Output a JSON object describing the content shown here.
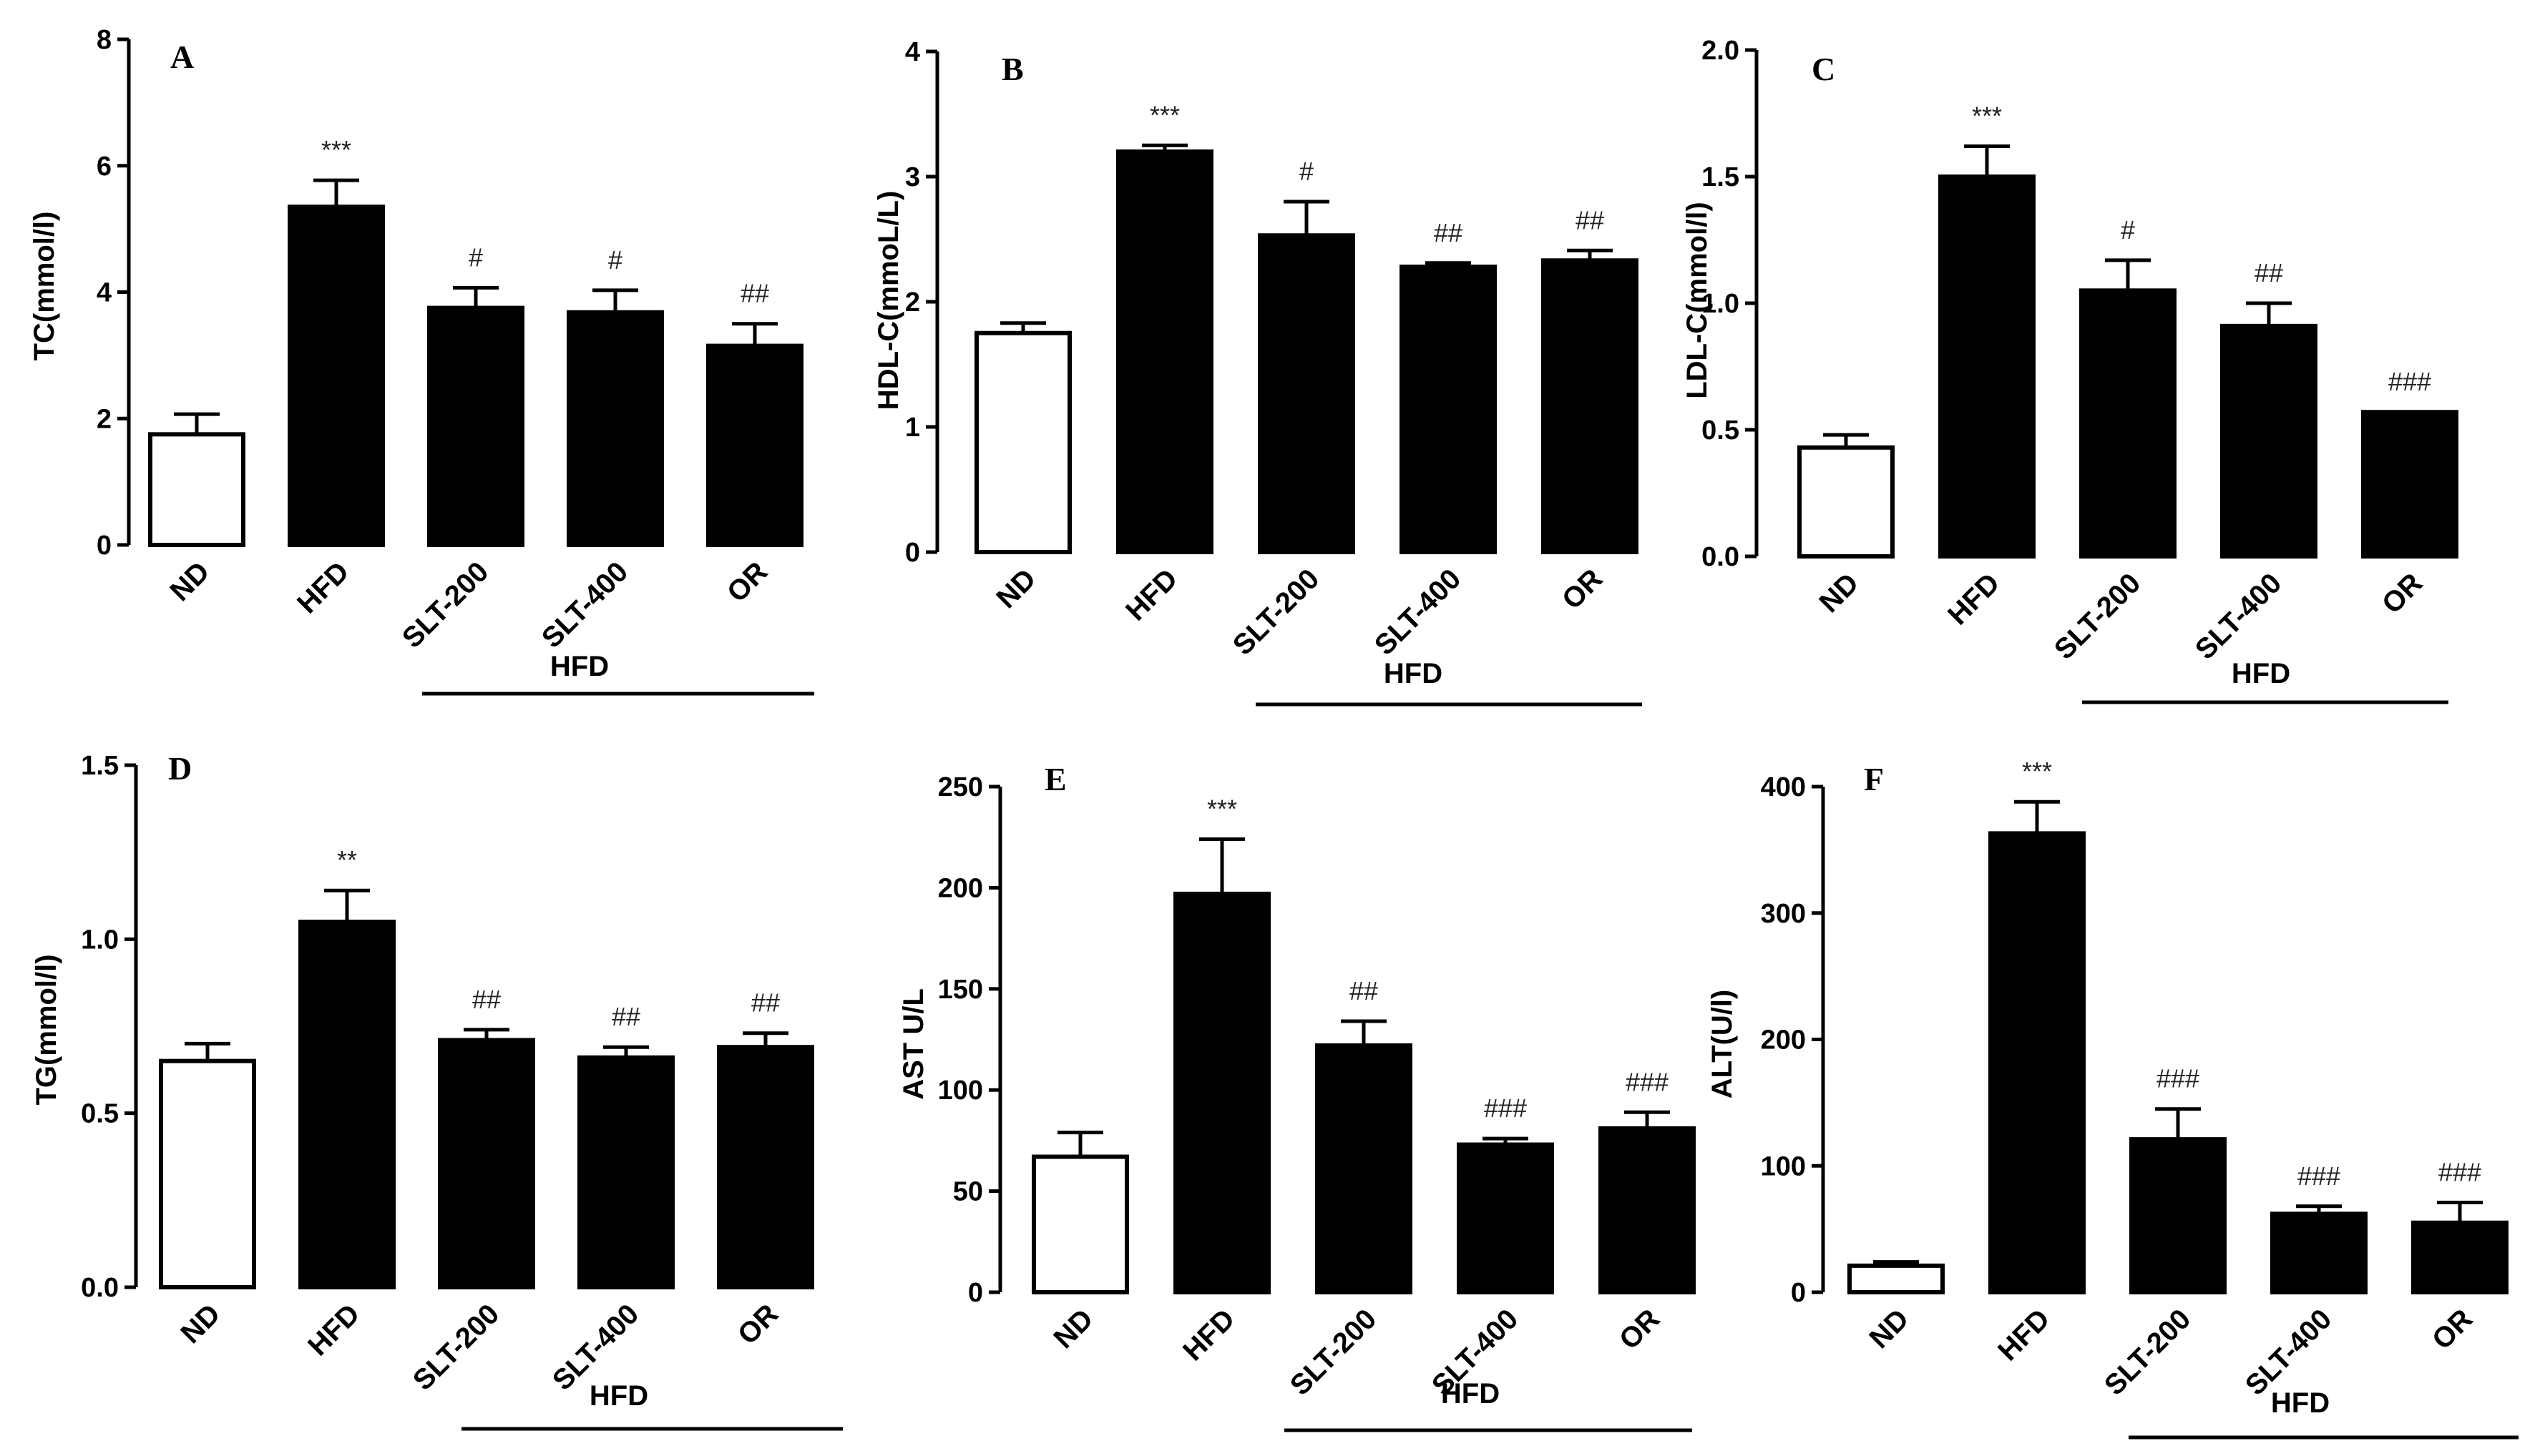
{
  "chart_data": [
    {
      "type": "bar",
      "panel": "A",
      "ylabel": "TC(mmol/l)",
      "ylim": [
        0,
        8
      ],
      "yticks": [
        0,
        2,
        4,
        6,
        8
      ],
      "ytick_labels": [
        "0",
        "2",
        "4",
        "6",
        "8"
      ],
      "categories": [
        "ND",
        "HFD",
        "SLT-200",
        "SLT-400",
        "OR"
      ],
      "values": [
        1.75,
        5.35,
        3.75,
        3.68,
        3.15
      ],
      "errors": [
        0.32,
        0.42,
        0.32,
        0.35,
        0.35
      ],
      "fills": [
        "#ffffff",
        "#000000",
        "#000000",
        "#000000",
        "#000000"
      ],
      "significance": [
        "",
        "***",
        "#",
        "#",
        "##"
      ],
      "group_label": "HFD"
    },
    {
      "type": "bar",
      "panel": "B",
      "ylabel": "HDL-C(mmoL/L)",
      "ylim": [
        0,
        4
      ],
      "yticks": [
        0,
        1,
        2,
        3,
        4
      ],
      "ytick_labels": [
        "0",
        "1",
        "2",
        "3",
        "4"
      ],
      "categories": [
        "ND",
        "HFD",
        "SLT-200",
        "SLT-400",
        "OR"
      ],
      "values": [
        1.75,
        3.2,
        2.53,
        2.28,
        2.33
      ],
      "errors": [
        0.08,
        0.05,
        0.27,
        0.03,
        0.08
      ],
      "fills": [
        "#ffffff",
        "#000000",
        "#000000",
        "#000000",
        "#000000"
      ],
      "significance": [
        "",
        "***",
        "#",
        "##",
        "##"
      ],
      "group_label": "HFD"
    },
    {
      "type": "bar",
      "panel": "C",
      "ylabel": "LDL-C(mmol/l)",
      "ylim": [
        0,
        2.0
      ],
      "yticks": [
        0,
        0.5,
        1.0,
        1.5,
        2.0
      ],
      "ytick_labels": [
        "0.0",
        "0.5",
        "1.0",
        "1.5",
        "2.0"
      ],
      "categories": [
        "ND",
        "HFD",
        "SLT-200",
        "SLT-400",
        "OR"
      ],
      "values": [
        0.43,
        1.5,
        1.05,
        0.91,
        0.57
      ],
      "errors": [
        0.05,
        0.12,
        0.12,
        0.09,
        0.0
      ],
      "fills": [
        "#ffffff",
        "#000000",
        "#000000",
        "#000000",
        "#000000"
      ],
      "significance": [
        "",
        "***",
        "#",
        "##",
        "###"
      ],
      "group_label": "HFD"
    },
    {
      "type": "bar",
      "panel": "D",
      "ylabel": "TG(mmol/l)",
      "ylim": [
        0,
        1.5
      ],
      "yticks": [
        0,
        0.5,
        1.0,
        1.5
      ],
      "ytick_labels": [
        "0.0",
        "0.5",
        "1.0",
        "1.5"
      ],
      "categories": [
        "ND",
        "HFD",
        "SLT-200",
        "SLT-400",
        "OR"
      ],
      "values": [
        0.65,
        1.05,
        0.71,
        0.66,
        0.69
      ],
      "errors": [
        0.05,
        0.09,
        0.03,
        0.03,
        0.04
      ],
      "fills": [
        "#ffffff",
        "#000000",
        "#000000",
        "#000000",
        "#000000"
      ],
      "significance": [
        "",
        "**",
        "##",
        "##",
        "##"
      ],
      "group_label": "HFD"
    },
    {
      "type": "bar",
      "panel": "E",
      "ylabel": "AST U/L",
      "ylim": [
        0,
        250
      ],
      "yticks": [
        0,
        50,
        100,
        150,
        200,
        250
      ],
      "ytick_labels": [
        "0",
        "50",
        "100",
        "150",
        "200",
        "250"
      ],
      "categories": [
        "ND",
        "HFD",
        "SLT-200",
        "SLT-400",
        "OR"
      ],
      "values": [
        67,
        197,
        122,
        73,
        81
      ],
      "errors": [
        12,
        27,
        12,
        3,
        8
      ],
      "fills": [
        "#ffffff",
        "#000000",
        "#000000",
        "#000000",
        "#000000"
      ],
      "significance": [
        "",
        "***",
        "##",
        "###",
        "###"
      ],
      "group_label": "HFD"
    },
    {
      "type": "bar",
      "panel": "F",
      "ylabel": "ALT(U/l)",
      "ylim": [
        0,
        400
      ],
      "yticks": [
        0,
        100,
        200,
        300,
        400
      ],
      "ytick_labels": [
        "0",
        "100",
        "200",
        "300",
        "400"
      ],
      "categories": [
        "ND",
        "HFD",
        "SLT-200",
        "SLT-400",
        "OR"
      ],
      "values": [
        21,
        363,
        121,
        62,
        55
      ],
      "errors": [
        3,
        25,
        24,
        6,
        16
      ],
      "fills": [
        "#ffffff",
        "#000000",
        "#000000",
        "#000000",
        "#000000"
      ],
      "significance": [
        "",
        "***",
        "###",
        "###",
        "###"
      ],
      "group_label": "HFD"
    }
  ]
}
